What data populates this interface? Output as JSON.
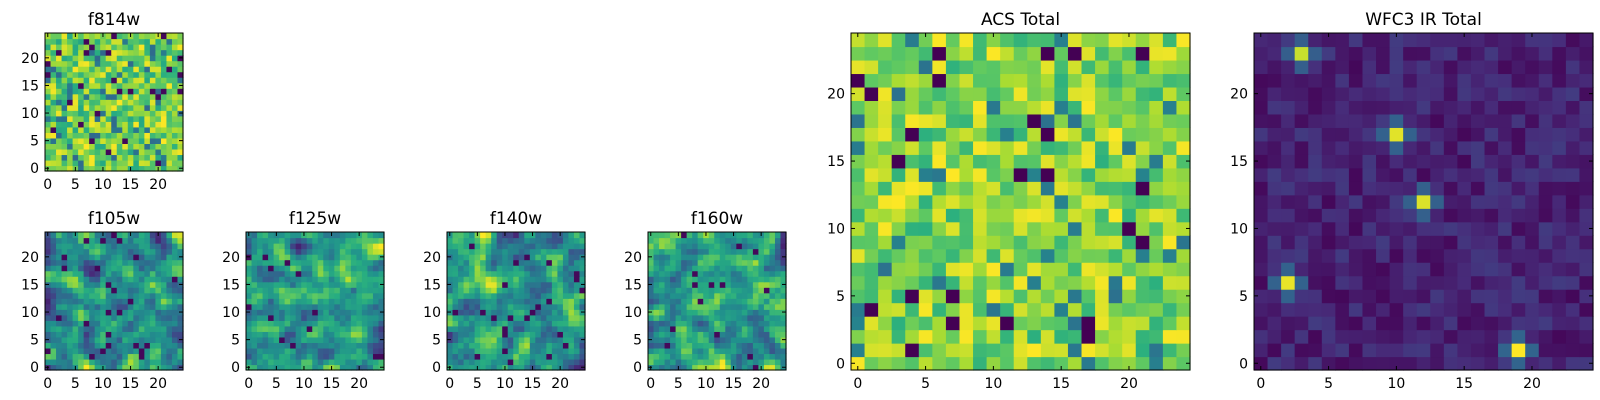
{
  "chart_data": [
    {
      "type": "heatmap",
      "title": "f814w",
      "cmap": "viridis",
      "grid_size": 25,
      "xlim": [
        -0.5,
        24.5
      ],
      "ylim": [
        -0.5,
        24.5
      ],
      "xticks": [
        0,
        5,
        10,
        15,
        20
      ],
      "yticks": [
        0,
        5,
        10,
        15,
        20
      ],
      "pattern": "noise",
      "seed": 11
    },
    {
      "type": "heatmap",
      "title": "f105w",
      "cmap": "viridis",
      "grid_size": 25,
      "xlim": [
        -0.5,
        24.5
      ],
      "ylim": [
        -0.5,
        24.5
      ],
      "xticks": [
        0,
        5,
        10,
        15,
        20
      ],
      "yticks": [
        0,
        5,
        10,
        15,
        20
      ],
      "pattern": "smooth_noise",
      "seed": 23
    },
    {
      "type": "heatmap",
      "title": "f125w",
      "cmap": "viridis",
      "grid_size": 25,
      "xlim": [
        -0.5,
        24.5
      ],
      "ylim": [
        -0.5,
        24.5
      ],
      "xticks": [
        0,
        5,
        10,
        15,
        20
      ],
      "yticks": [
        0,
        5,
        10,
        15,
        20
      ],
      "pattern": "smooth_noise",
      "seed": 37
    },
    {
      "type": "heatmap",
      "title": "f140w",
      "cmap": "viridis",
      "grid_size": 25,
      "xlim": [
        -0.5,
        24.5
      ],
      "ylim": [
        -0.5,
        24.5
      ],
      "xticks": [
        0,
        5,
        10,
        15,
        20
      ],
      "yticks": [
        0,
        5,
        10,
        15,
        20
      ],
      "pattern": "smooth_noise",
      "seed": 41
    },
    {
      "type": "heatmap",
      "title": "f160w",
      "cmap": "viridis",
      "grid_size": 25,
      "xlim": [
        -0.5,
        24.5
      ],
      "ylim": [
        -0.5,
        24.5
      ],
      "xticks": [
        0,
        5,
        10,
        15,
        20
      ],
      "yticks": [
        0,
        5,
        10,
        15,
        20
      ],
      "pattern": "smooth_noise",
      "seed": 53
    },
    {
      "type": "heatmap",
      "title": "ACS Total",
      "cmap": "viridis",
      "grid_size": 25,
      "xlim": [
        -0.5,
        24.5
      ],
      "ylim": [
        -0.5,
        24.5
      ],
      "xticks": [
        0,
        5,
        10,
        15,
        20
      ],
      "yticks": [
        0,
        5,
        10,
        15,
        20
      ],
      "pattern": "noise_high",
      "seed": 67
    },
    {
      "type": "heatmap",
      "title": "WFC3 IR Total",
      "cmap": "viridis",
      "grid_size": 25,
      "xlim": [
        -0.5,
        24.5
      ],
      "ylim": [
        -0.5,
        24.5
      ],
      "xticks": [
        0,
        5,
        10,
        15,
        20
      ],
      "yticks": [
        0,
        5,
        10,
        15,
        20
      ],
      "pattern": "sources",
      "seed": 79,
      "sources": [
        {
          "x": 3,
          "y": 23,
          "peak": 0.92
        },
        {
          "x": 10,
          "y": 17,
          "peak": 0.96
        },
        {
          "x": 12,
          "y": 12,
          "peak": 0.95
        },
        {
          "x": 2,
          "y": 6,
          "peak": 0.97
        },
        {
          "x": 19,
          "y": 1,
          "peak": 1.0
        }
      ]
    }
  ]
}
